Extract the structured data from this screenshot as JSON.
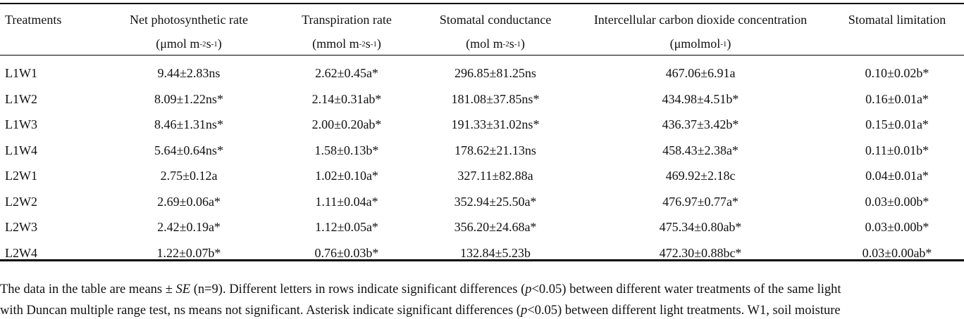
{
  "table": {
    "headers": [
      {
        "label": "Treatments",
        "unit_pre": "",
        "unit_sup1": "",
        "unit_mid": "",
        "unit_sup2": "",
        "unit_post": ""
      },
      {
        "label": "Net photosynthetic rate",
        "unit_pre": "(μmol m",
        "unit_sup1": "-2",
        "unit_mid": "s",
        "unit_sup2": "-1",
        "unit_post": ")"
      },
      {
        "label": "Transpiration rate",
        "unit_pre": "(mmol m",
        "unit_sup1": "-2",
        "unit_mid": "s",
        "unit_sup2": "-1",
        "unit_post": ")"
      },
      {
        "label": "Stomatal conductance",
        "unit_pre": "(mol m",
        "unit_sup1": "-2",
        "unit_mid": "s",
        "unit_sup2": "-1",
        "unit_post": ")"
      },
      {
        "label": "Intercellular carbon dioxide concentration",
        "unit_pre": "(μmolmol",
        "unit_sup1": "-1",
        "unit_mid": "",
        "unit_sup2": "",
        "unit_post": ")"
      },
      {
        "label": "Stomatal limitation",
        "unit_pre": "",
        "unit_sup1": "",
        "unit_mid": "",
        "unit_sup2": "",
        "unit_post": ""
      }
    ],
    "rows": [
      [
        "L1W1",
        "9.44±2.83ns",
        "2.62±0.45a*",
        "296.85±81.25ns",
        "467.06±6.91a",
        "0.10±0.02b*"
      ],
      [
        "L1W2",
        "8.09±1.22ns*",
        "2.14±0.31ab*",
        "181.08±37.85ns*",
        "434.98±4.51b*",
        "0.16±0.01a*"
      ],
      [
        "L1W3",
        "8.46±1.31ns*",
        "2.00±0.20ab*",
        "191.33±31.02ns*",
        "436.37±3.42b*",
        "0.15±0.01a*"
      ],
      [
        "L1W4",
        "5.64±0.64ns*",
        "1.58±0.13b*",
        "178.62±21.13ns",
        "458.43±2.38a*",
        "0.11±0.01b*"
      ],
      [
        "L2W1",
        "2.75±0.12a",
        "1.02±0.10a*",
        "327.11±82.88a",
        "469.92±2.18c",
        "0.04±0.01a*"
      ],
      [
        "L2W2",
        "2.69±0.06a*",
        "1.11±0.04a*",
        "352.94±25.50a*",
        "476.97±0.77a*",
        "0.03±0.00b*"
      ],
      [
        "L2W3",
        "2.42±0.19a*",
        "1.12±0.05a*",
        "356.20±24.68a*",
        "475.34±0.80ab*",
        "0.03±0.00b*"
      ],
      [
        "L2W4",
        "1.22±0.07b*",
        "0.76±0.03b*",
        "132.84±5.23b",
        "472.30±0.88bc*",
        "0.03±0.00ab*"
      ]
    ]
  },
  "footnote": {
    "line1": {
      "a": "The data in the table are means ± ",
      "se": "SE",
      "b": " (n=9). Different letters in rows indicate significant differences (",
      "p": "p",
      "c": "<0.05) between different water treatments of the same light"
    },
    "line2": {
      "a": "with Duncan multiple range test, ns means not significant. Asterisk indicate significant differences (",
      "p": "p",
      "c": "<0.05) between different light treatments. W1, soil moisture"
    }
  }
}
